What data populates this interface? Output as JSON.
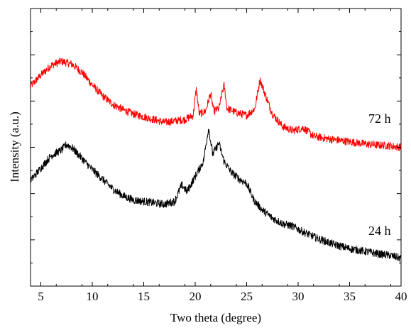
{
  "chart_data": {
    "type": "line",
    "title": "",
    "xlabel": "Two theta (degree)",
    "ylabel": "Intensity (a.u.)",
    "xlim": [
      4,
      40
    ],
    "ylim": [
      0,
      1
    ],
    "y_ticks_labeled": false,
    "x_ticks": [
      5,
      10,
      15,
      20,
      25,
      30,
      35,
      40
    ],
    "x_tick_labels": [
      "5",
      "10",
      "15",
      "20",
      "25",
      "30",
      "35",
      "40"
    ],
    "grid": false,
    "legend": "none",
    "series": [
      {
        "name": "72 h",
        "color": "#ff0000",
        "points": [
          [
            4.0,
            0.72
          ],
          [
            5.0,
            0.76
          ],
          [
            6.0,
            0.795
          ],
          [
            7.0,
            0.81
          ],
          [
            8.0,
            0.8
          ],
          [
            9.0,
            0.77
          ],
          [
            10.0,
            0.725
          ],
          [
            11.0,
            0.685
          ],
          [
            12.0,
            0.655
          ],
          [
            13.0,
            0.635
          ],
          [
            14.0,
            0.62
          ],
          [
            15.0,
            0.61
          ],
          [
            16.0,
            0.6
          ],
          [
            17.0,
            0.59
          ],
          [
            18.0,
            0.595
          ],
          [
            19.0,
            0.6
          ],
          [
            19.8,
            0.615
          ],
          [
            20.1,
            0.71
          ],
          [
            20.4,
            0.62
          ],
          [
            21.0,
            0.63
          ],
          [
            21.5,
            0.695
          ],
          [
            21.8,
            0.63
          ],
          [
            22.3,
            0.64
          ],
          [
            22.8,
            0.725
          ],
          [
            23.1,
            0.64
          ],
          [
            24.0,
            0.625
          ],
          [
            25.0,
            0.615
          ],
          [
            25.8,
            0.64
          ],
          [
            26.3,
            0.745
          ],
          [
            26.8,
            0.69
          ],
          [
            27.5,
            0.62
          ],
          [
            28.5,
            0.575
          ],
          [
            29.5,
            0.56
          ],
          [
            30.5,
            0.57
          ],
          [
            31.5,
            0.54
          ],
          [
            33.0,
            0.53
          ],
          [
            35.0,
            0.52
          ],
          [
            37.0,
            0.51
          ],
          [
            39.0,
            0.505
          ],
          [
            40.0,
            0.5
          ]
        ]
      },
      {
        "name": "24 h",
        "color": "#000000",
        "points": [
          [
            4.0,
            0.38
          ],
          [
            5.0,
            0.425
          ],
          [
            6.0,
            0.47
          ],
          [
            7.0,
            0.49
          ],
          [
            7.5,
            0.51
          ],
          [
            8.0,
            0.5
          ],
          [
            9.0,
            0.46
          ],
          [
            10.0,
            0.42
          ],
          [
            11.0,
            0.385
          ],
          [
            12.0,
            0.35
          ],
          [
            13.0,
            0.325
          ],
          [
            14.0,
            0.31
          ],
          [
            15.0,
            0.305
          ],
          [
            16.0,
            0.3
          ],
          [
            17.0,
            0.295
          ],
          [
            18.0,
            0.305
          ],
          [
            18.7,
            0.365
          ],
          [
            19.2,
            0.34
          ],
          [
            20.0,
            0.395
          ],
          [
            20.8,
            0.45
          ],
          [
            21.3,
            0.57
          ],
          [
            21.7,
            0.475
          ],
          [
            22.3,
            0.515
          ],
          [
            22.8,
            0.45
          ],
          [
            23.5,
            0.41
          ],
          [
            24.3,
            0.385
          ],
          [
            25.0,
            0.37
          ],
          [
            25.7,
            0.31
          ],
          [
            26.5,
            0.275
          ],
          [
            27.5,
            0.245
          ],
          [
            28.5,
            0.225
          ],
          [
            29.5,
            0.215
          ],
          [
            30.5,
            0.195
          ],
          [
            32.0,
            0.17
          ],
          [
            33.5,
            0.15
          ],
          [
            35.0,
            0.135
          ],
          [
            36.5,
            0.125
          ],
          [
            38.0,
            0.115
          ],
          [
            39.0,
            0.11
          ],
          [
            40.0,
            0.1
          ]
        ]
      }
    ]
  }
}
